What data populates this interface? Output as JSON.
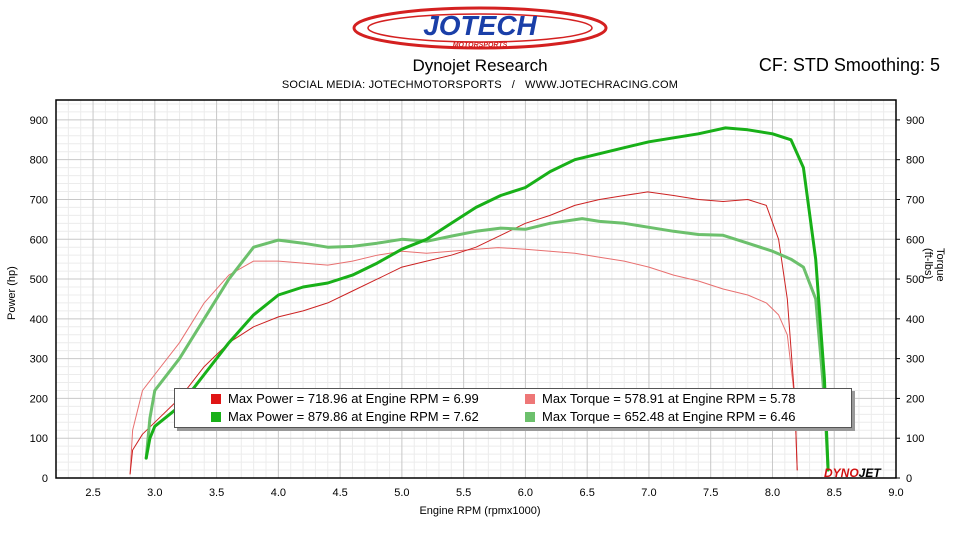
{
  "header": {
    "logo_text": "JOTECH",
    "logo_subtext": "MOTORSPORTS",
    "title": "Dynojet Research",
    "cf_text": "CF: STD Smoothing: 5",
    "social_left": "SOCIAL MEDIA: JOTECHMOTORSPORTS",
    "social_sep": "/",
    "social_right": "WWW.JOTECHRACING.COM"
  },
  "colors": {
    "run1_power": "#cc2222",
    "run1_torque": "#e87070",
    "run2_power": "#18b018",
    "run2_torque": "#6cc06c",
    "grid": "#c8c8c8"
  },
  "brand": {
    "part1": "DYNO",
    "part2": "JET"
  },
  "chart_data": {
    "type": "line",
    "xlabel": "Engine RPM (rpmx1000)",
    "ylabel": "Power (hp)",
    "y2label": "Torque (ft-lbs)",
    "xlim": [
      2.2,
      9.0
    ],
    "ylim": [
      0,
      950
    ],
    "y2lim": [
      0,
      950
    ],
    "x_ticks": [
      "2.5",
      "3.0",
      "3.5",
      "4.0",
      "4.5",
      "5.0",
      "5.5",
      "6.0",
      "6.5",
      "7.0",
      "7.5",
      "8.0",
      "8.5",
      "9.0"
    ],
    "y_ticks": [
      "0",
      "100",
      "200",
      "300",
      "400",
      "500",
      "600",
      "700",
      "800",
      "900"
    ],
    "grid": true,
    "legend_placement": "bottom-center",
    "legend": [
      "Max Power = 718.96 at Engine RPM = 6.99",
      "Max Torque = 578.91 at Engine RPM = 5.78",
      "Max Power = 879.86 at Engine RPM = 7.62",
      "Max Torque = 652.48 at Engine RPM = 6.46"
    ],
    "series": [
      {
        "color": "#cc2222",
        "width": 1,
        "x": [
          2.8,
          2.82,
          2.9,
          3.0,
          3.2,
          3.4,
          3.6,
          3.8,
          4.0,
          4.2,
          4.4,
          4.6,
          4.8,
          5.0,
          5.2,
          5.4,
          5.6,
          5.8,
          6.0,
          6.2,
          6.4,
          6.6,
          6.8,
          6.99,
          7.2,
          7.4,
          7.6,
          7.8,
          7.95,
          8.05,
          8.12,
          8.18,
          8.2
        ],
        "y": [
          10,
          70,
          110,
          140,
          200,
          280,
          340,
          380,
          405,
          420,
          440,
          470,
          500,
          530,
          545,
          560,
          580,
          610,
          640,
          660,
          685,
          700,
          710,
          719,
          710,
          700,
          695,
          700,
          685,
          600,
          450,
          200,
          20
        ]
      },
      {
        "color": "#e87070",
        "width": 1,
        "x": [
          2.8,
          2.82,
          2.9,
          3.0,
          3.2,
          3.4,
          3.6,
          3.8,
          4.0,
          4.2,
          4.4,
          4.6,
          4.8,
          5.0,
          5.2,
          5.4,
          5.6,
          5.78,
          6.0,
          6.2,
          6.4,
          6.6,
          6.8,
          7.0,
          7.2,
          7.4,
          7.6,
          7.8,
          7.95,
          8.05,
          8.12,
          8.18,
          8.2
        ],
        "y": [
          10,
          120,
          220,
          260,
          340,
          440,
          510,
          545,
          545,
          540,
          535,
          545,
          560,
          570,
          565,
          570,
          575,
          579,
          575,
          570,
          565,
          555,
          545,
          530,
          510,
          495,
          475,
          460,
          440,
          410,
          360,
          200,
          20
        ]
      },
      {
        "color": "#18b018",
        "width": 3,
        "x": [
          2.93,
          2.96,
          3.0,
          3.2,
          3.4,
          3.6,
          3.8,
          4.0,
          4.2,
          4.4,
          4.6,
          4.8,
          5.0,
          5.2,
          5.4,
          5.6,
          5.8,
          6.0,
          6.2,
          6.4,
          6.6,
          6.8,
          7.0,
          7.2,
          7.4,
          7.62,
          7.8,
          8.0,
          8.15,
          8.25,
          8.35,
          8.42,
          8.45
        ],
        "y": [
          50,
          100,
          130,
          180,
          260,
          340,
          410,
          460,
          480,
          490,
          510,
          540,
          575,
          600,
          640,
          680,
          710,
          730,
          770,
          800,
          815,
          830,
          845,
          855,
          865,
          880,
          875,
          865,
          850,
          780,
          550,
          250,
          20
        ]
      },
      {
        "color": "#6cc06c",
        "width": 3,
        "x": [
          2.93,
          2.96,
          3.0,
          3.2,
          3.4,
          3.6,
          3.8,
          4.0,
          4.2,
          4.4,
          4.6,
          4.8,
          5.0,
          5.2,
          5.4,
          5.6,
          5.8,
          6.0,
          6.2,
          6.46,
          6.6,
          6.8,
          7.0,
          7.2,
          7.4,
          7.6,
          7.8,
          8.0,
          8.15,
          8.25,
          8.35,
          8.42,
          8.45
        ],
        "y": [
          50,
          150,
          220,
          300,
          400,
          500,
          580,
          598,
          590,
          580,
          582,
          590,
          600,
          595,
          608,
          620,
          628,
          625,
          640,
          652,
          645,
          640,
          630,
          620,
          612,
          610,
          590,
          570,
          550,
          530,
          450,
          200,
          20
        ]
      }
    ]
  }
}
